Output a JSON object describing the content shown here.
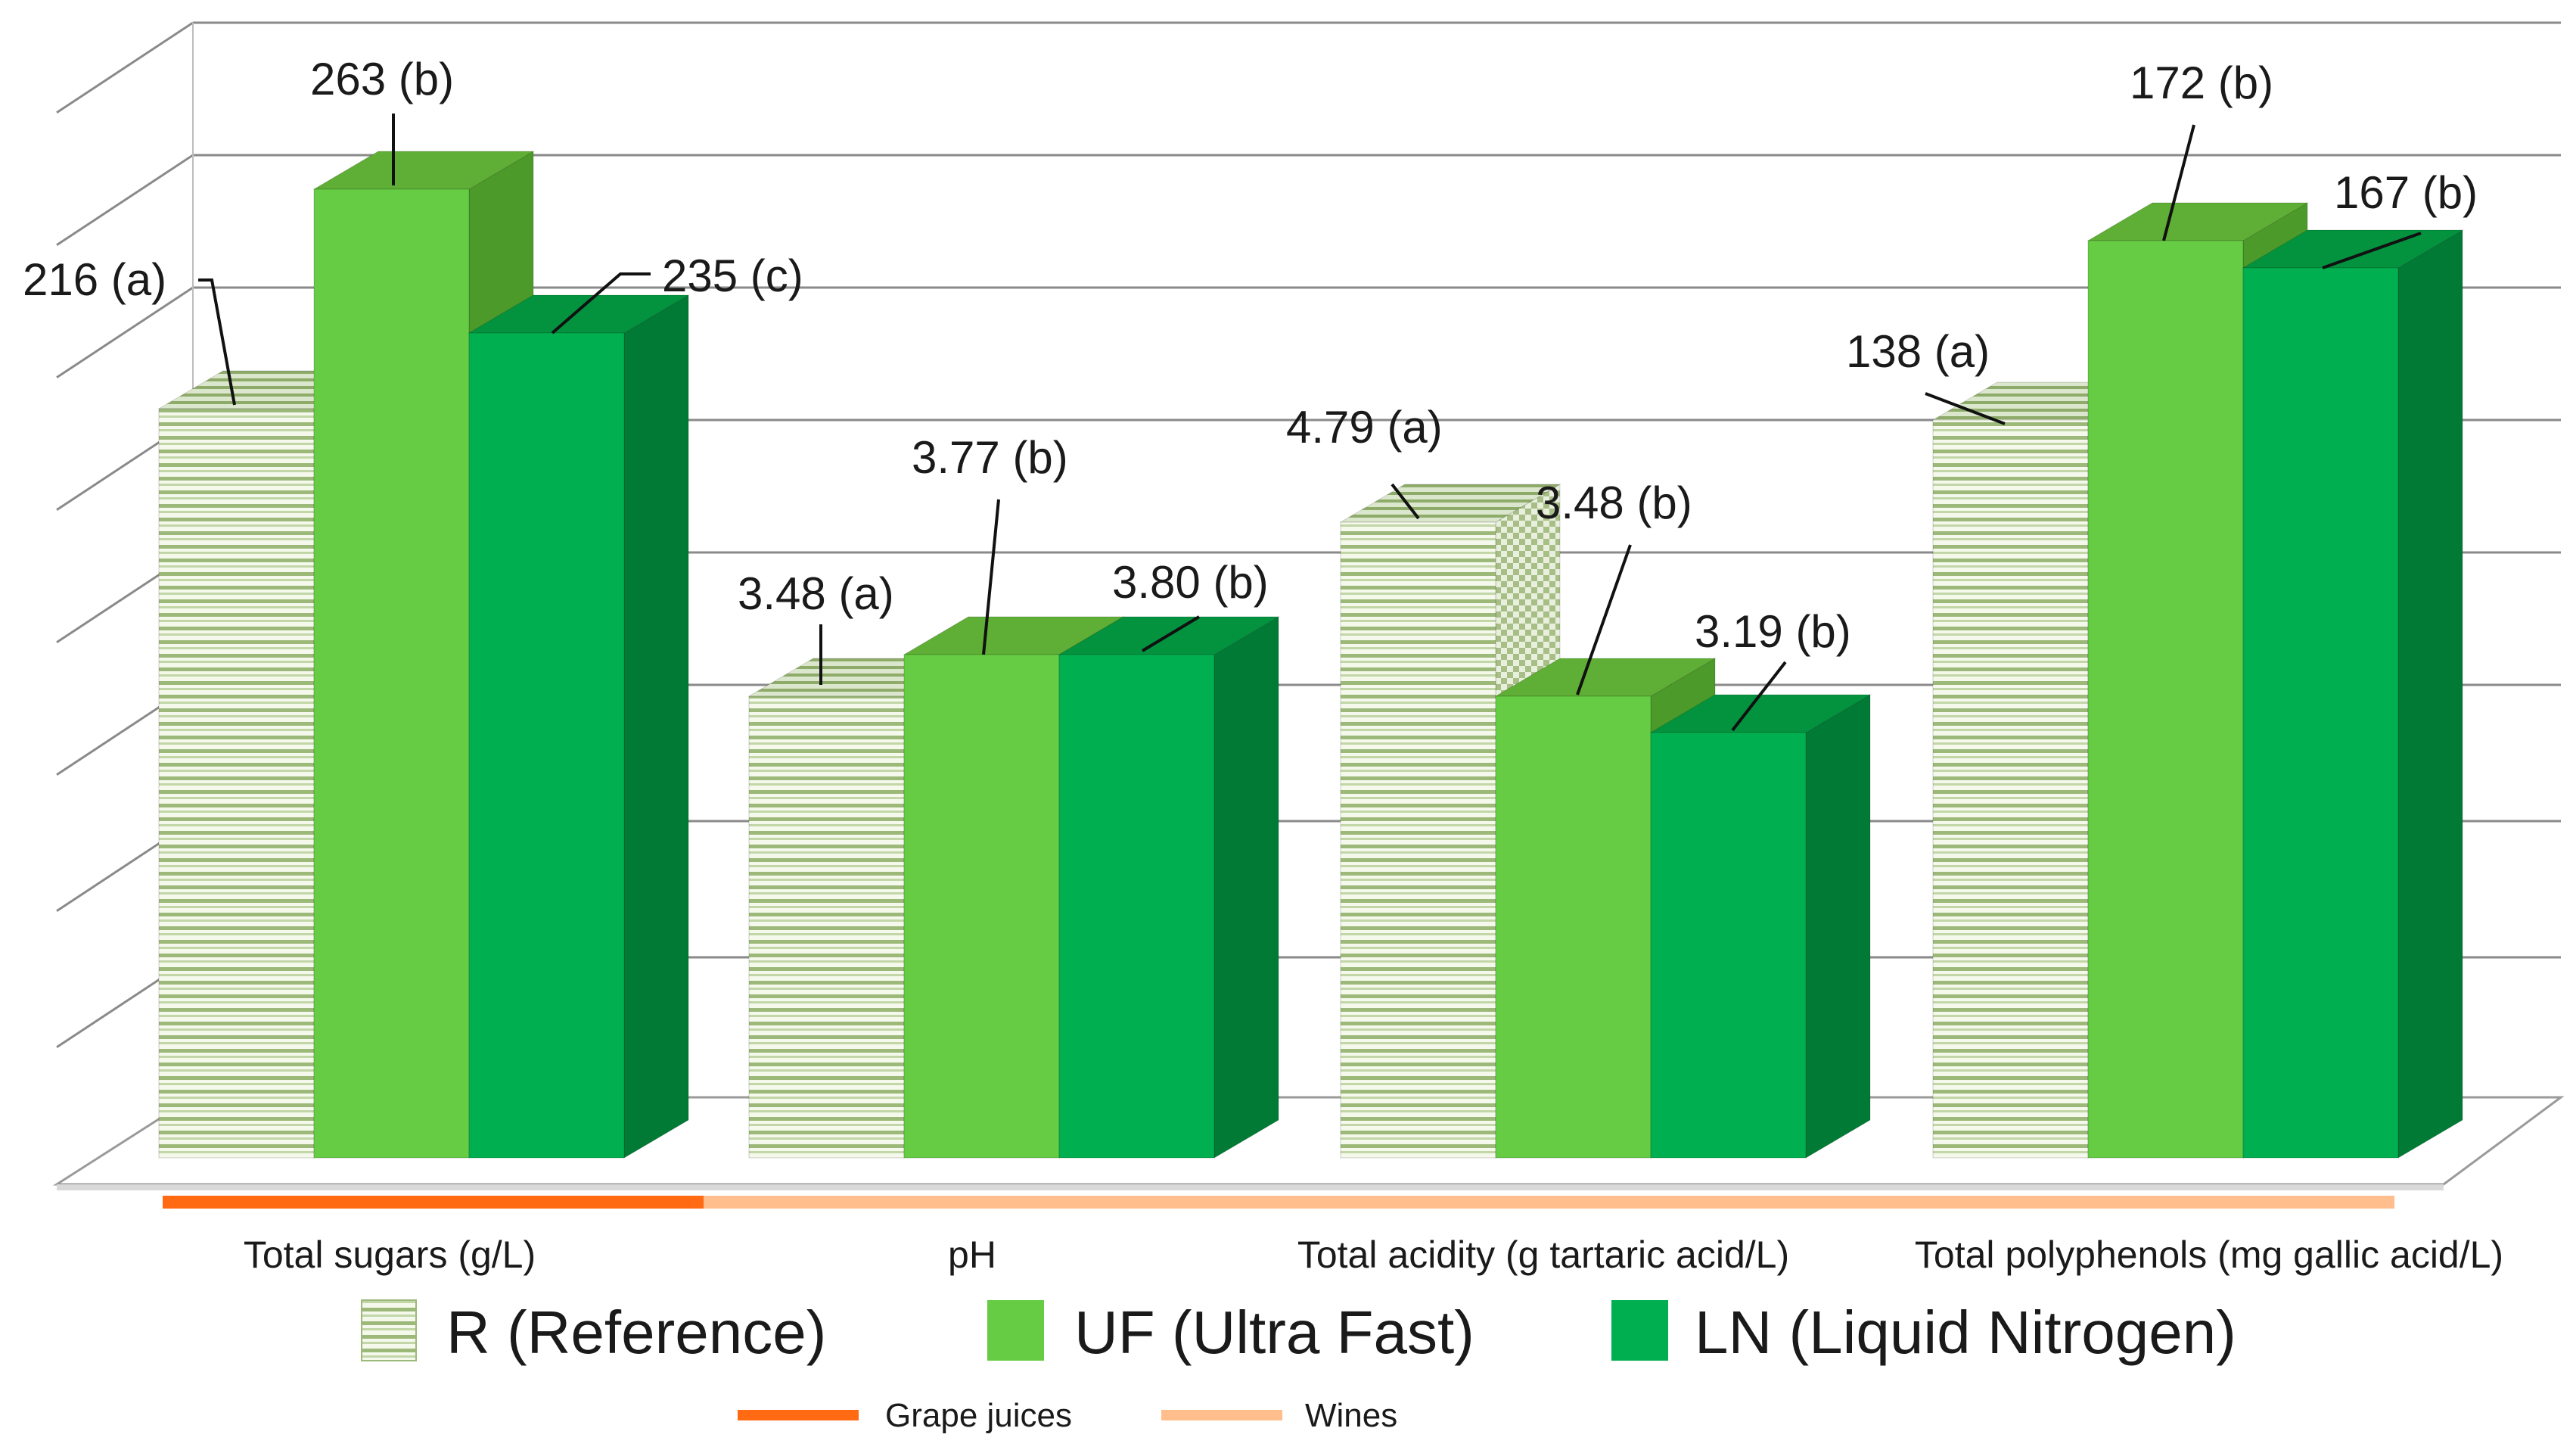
{
  "chart_data": {
    "type": "bar",
    "style": "3d-clustered-column",
    "title": "",
    "xlabel": "",
    "ylabel": "",
    "grid": true,
    "categories": [
      "Total sugars (g/L)",
      "pH",
      "Total acidity (g tartaric acid/L)",
      "Total polyphenols (mg gallic acid/L)"
    ],
    "series": [
      {
        "name": "R (Reference)",
        "color": "#8aa860",
        "pattern": "horizontal-stripes",
        "labels": [
          "216 (a)",
          "3.48 (a)",
          "4.79 (a)",
          "138 (a)"
        ]
      },
      {
        "name": "UF (Ultra Fast)",
        "color": "#66cc44",
        "labels": [
          "263 (b)",
          "3.77 (b)",
          "3.48 (b)",
          "172 (b)"
        ]
      },
      {
        "name": "LN (Liquid Nitrogen)",
        "color": "#00b050",
        "labels": [
          "235 (c)",
          "3.80 (b)",
          "3.19 (b)",
          "167 (b)"
        ]
      }
    ],
    "groups": [
      {
        "name": "Grape juices",
        "color": "#ff6a13",
        "categories": [
          "Total sugars (g/L)"
        ]
      },
      {
        "name": "Wines",
        "color": "#ffbe8c",
        "categories": [
          "pH",
          "Total acidity (g tartaric acid/L)",
          "Total polyphenols (mg gallic acid/L)"
        ]
      }
    ],
    "legend_position": "bottom"
  }
}
